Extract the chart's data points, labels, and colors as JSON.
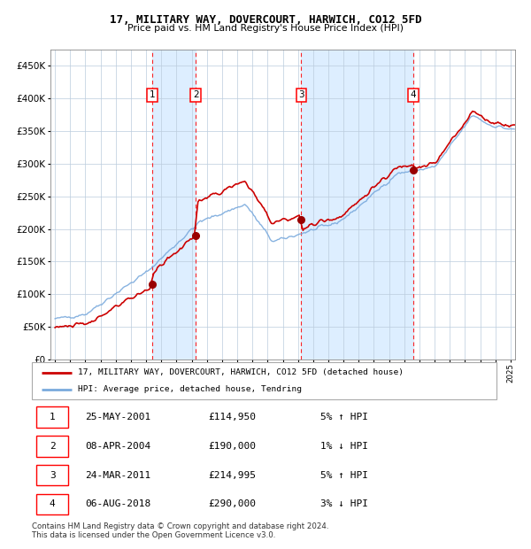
{
  "title": "17, MILITARY WAY, DOVERCOURT, HARWICH, CO12 5FD",
  "subtitle": "Price paid vs. HM Land Registry's House Price Index (HPI)",
  "legend_line1": "17, MILITARY WAY, DOVERCOURT, HARWICH, CO12 5FD (detached house)",
  "legend_line2": "HPI: Average price, detached house, Tendring",
  "transactions": [
    {
      "num": 1,
      "date": "25-MAY-2001",
      "price": 114950,
      "year": 2001.39,
      "pct": "5%",
      "dir": "↑"
    },
    {
      "num": 2,
      "date": "08-APR-2004",
      "price": 190000,
      "year": 2004.27,
      "pct": "1%",
      "dir": "↓"
    },
    {
      "num": 3,
      "date": "24-MAR-2011",
      "price": 214995,
      "year": 2011.22,
      "pct": "5%",
      "dir": "↑"
    },
    {
      "num": 4,
      "date": "06-AUG-2018",
      "price": 290000,
      "year": 2018.59,
      "pct": "3%",
      "dir": "↓"
    }
  ],
  "table_rows": [
    [
      1,
      "25-MAY-2001",
      "£114,950",
      "5% ↑ HPI"
    ],
    [
      2,
      "08-APR-2004",
      "£190,000",
      "1% ↓ HPI"
    ],
    [
      3,
      "24-MAR-2011",
      "£214,995",
      "5% ↑ HPI"
    ],
    [
      4,
      "06-AUG-2018",
      "£290,000",
      "3% ↓ HPI"
    ]
  ],
  "footnote1": "Contains HM Land Registry data © Crown copyright and database right 2024.",
  "footnote2": "This data is licensed under the Open Government Licence v3.0.",
  "hpi_color": "#7aaadd",
  "price_color": "#cc0000",
  "dot_color": "#990000",
  "shade_color": "#ddeeff",
  "ylim": [
    0,
    475000
  ],
  "yticks": [
    0,
    50000,
    100000,
    150000,
    200000,
    250000,
    300000,
    350000,
    400000,
    450000
  ],
  "xlim_start": 1994.7,
  "xlim_end": 2025.3,
  "grid_color": "#bbccdd"
}
